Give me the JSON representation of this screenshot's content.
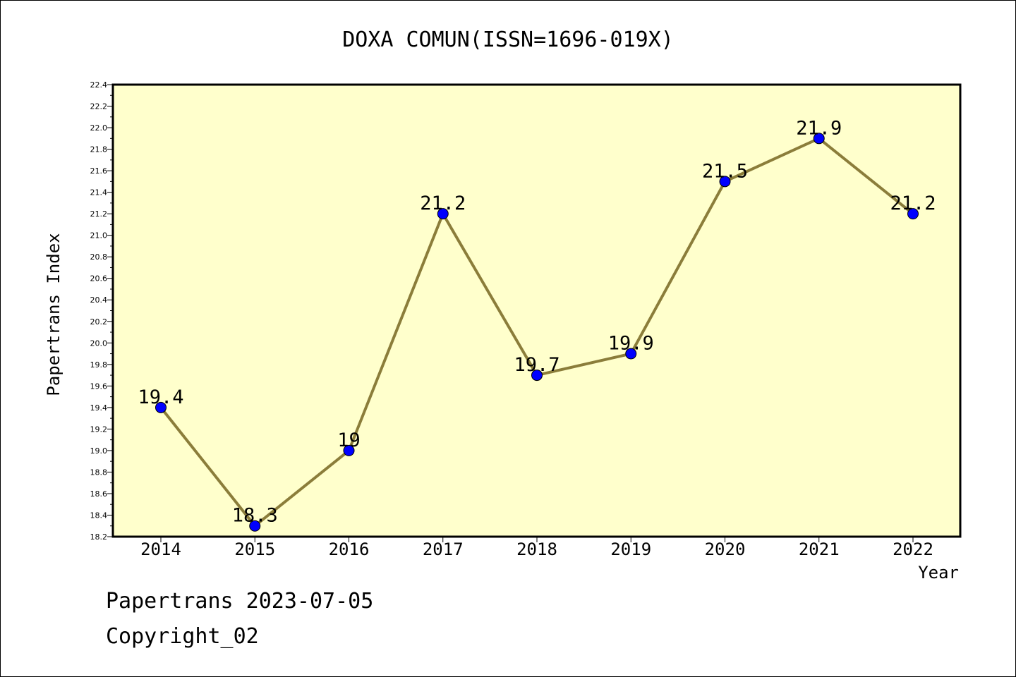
{
  "chart_data": {
    "type": "line",
    "title": "DOXA COMUN(ISSN=1696-019X)",
    "xlabel": "Year",
    "ylabel": "Papertrans Index",
    "categories": [
      "2014",
      "2015",
      "2016",
      "2017",
      "2018",
      "2019",
      "2020",
      "2021",
      "2022"
    ],
    "series": [
      {
        "values": [
          19.4,
          18.3,
          19.0,
          21.2,
          19.7,
          19.9,
          21.5,
          21.9,
          21.2
        ],
        "labels": [
          "19.4",
          "18.3",
          "19",
          "21.2",
          "19.7",
          "19.9",
          "21.5",
          "21.9",
          "21.2"
        ]
      }
    ],
    "ylim": [
      18.2,
      22.4
    ],
    "yticks": [
      "18.2",
      "18.4",
      "18.6",
      "18.8",
      "19.0",
      "19.2",
      "19.4",
      "19.6",
      "19.8",
      "20.0",
      "20.2",
      "20.4",
      "20.6",
      "20.8",
      "21.0",
      "21.2",
      "21.4",
      "21.6",
      "21.8",
      "22.0",
      "22.2",
      "22.4"
    ],
    "grid": false,
    "legend": "none",
    "colors": {
      "plot_background": "#ffffcc",
      "line": "#8b7d3a",
      "marker": "#0000ff"
    }
  },
  "footer": {
    "line1": "Papertrans 2023-07-05",
    "line2": "Copyright_02"
  }
}
